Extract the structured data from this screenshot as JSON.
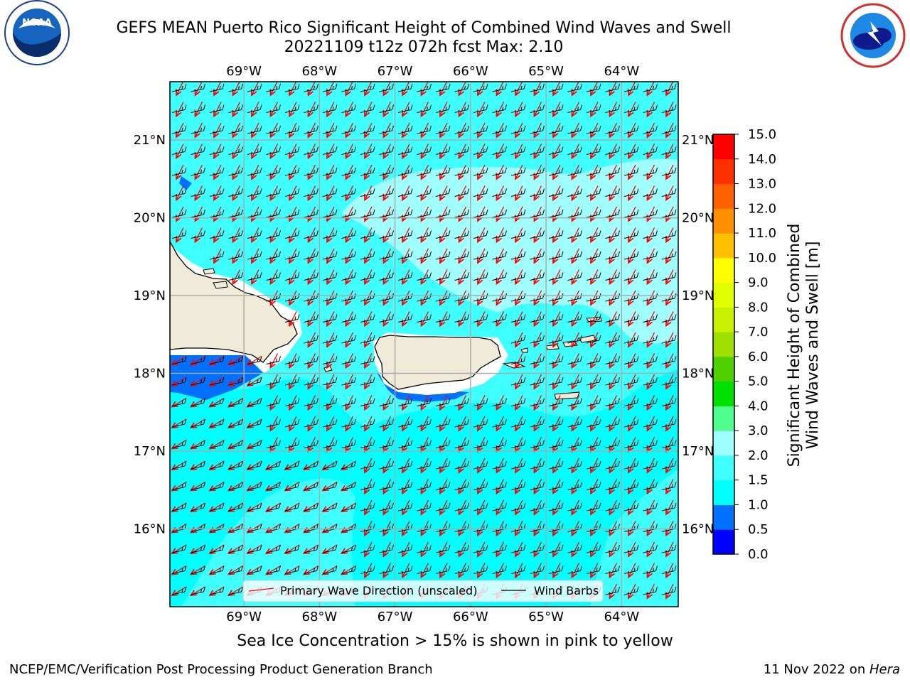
{
  "title": {
    "line1": "GEFS MEAN Puerto Rico Significant Height of Combined Wind Waves and Swell",
    "line2": "20221109 t12z 072h fcst   Max: 2.10"
  },
  "logos": {
    "left": "noaa-logo",
    "right": "nws-logo"
  },
  "axes": {
    "lon_labels": [
      "69°W",
      "68°W",
      "67°W",
      "66°W",
      "65°W",
      "64°W"
    ],
    "lon_values": [
      -69,
      -68,
      -67,
      -66,
      -65,
      -64
    ],
    "lat_labels": [
      "21°N",
      "20°N",
      "19°N",
      "18°N",
      "17°N",
      "16°N"
    ],
    "lat_values": [
      21,
      20,
      19,
      18,
      17,
      16
    ],
    "lon_range": [
      -69.98,
      -63.25
    ],
    "lat_range": [
      15.0,
      21.75
    ]
  },
  "colorbar": {
    "title_line1": "Significant Height of Combined",
    "title_line2": "Wind Waves and Swell [m]",
    "ticks": [
      "0.0",
      "0.5",
      "1.0",
      "1.5",
      "2.0",
      "3.0",
      "4.0",
      "5.0",
      "6.0",
      "7.0",
      "8.0",
      "9.0",
      "10.0",
      "11.0",
      "12.0",
      "13.0",
      "14.0",
      "15.0"
    ],
    "colors": [
      "#0000ff",
      "#0070ff",
      "#00ffff",
      "#40ffff",
      "#a0ffff",
      "#50ff90",
      "#00e000",
      "#50d000",
      "#a0e000",
      "#c8f000",
      "#e0ff00",
      "#ffff00",
      "#ffc000",
      "#ff9000",
      "#ff6000",
      "#ff3000",
      "#ff0000"
    ]
  },
  "legend": {
    "wave_label": "Primary Wave Direction (unscaled)",
    "barb_label": "Wind Barbs",
    "wave_color": "#ff0000",
    "barb_color": "#000000"
  },
  "note": "Sea Ice Concentration > 15% is shown in pink to yellow",
  "footer": {
    "left": "NCEP/EMC/Verification Post Processing Product Generation Branch",
    "right_date": "11 Nov 2022 on ",
    "right_host": "Hera"
  }
}
